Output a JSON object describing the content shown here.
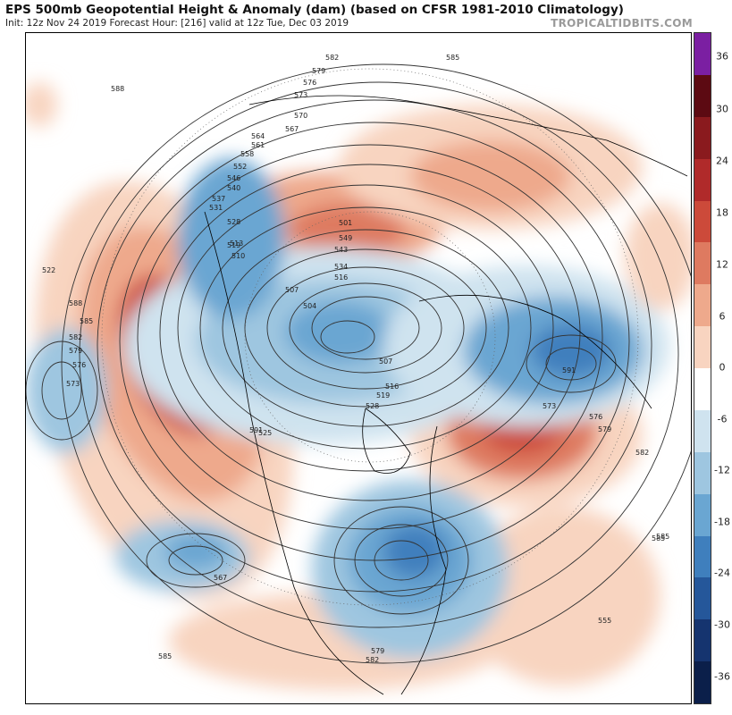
{
  "header": {
    "title": "EPS 500mb Geopotential Height & Anomaly (dam) (based on CFSR 1981-2010 Climatology)",
    "subtitle": "Init: 12z Nov 24 2019   Forecast Hour: [216]   valid at 12z Tue, Dec 03 2019",
    "brand": "TROPICALTIDBITS.COM"
  },
  "colorbar": {
    "ticks": [
      "36",
      "30",
      "24",
      "18",
      "12",
      "6",
      "0",
      "-6",
      "-12",
      "-18",
      "-24",
      "-30",
      "-36"
    ],
    "colors": [
      "#7b1fa2",
      "#5c0a12",
      "#8a1a1e",
      "#b02a2a",
      "#cc4a3a",
      "#de7a60",
      "#eea98c",
      "#f8d4c0",
      "#ffffff",
      "#cfe3ef",
      "#9ec6e0",
      "#6aa6d2",
      "#3f7fbd",
      "#25579a",
      "#15346f",
      "#0b1f4a"
    ],
    "unit": "dam"
  },
  "contour_labels": [
    "588",
    "579",
    "582",
    "585",
    "573",
    "576",
    "570",
    "567",
    "564",
    "561",
    "558",
    "555",
    "552",
    "546",
    "540",
    "537",
    "531",
    "528",
    "519",
    "516",
    "513",
    "510",
    "507",
    "504",
    "501",
    "549",
    "543",
    "534",
    "522",
    "591",
    "525",
    "591"
  ],
  "anomaly_centers": [
    {
      "name": "ridge-north-pacific",
      "sign": "positive"
    },
    {
      "name": "trough-hudson-bay",
      "sign": "negative"
    },
    {
      "name": "ridge-atlantic",
      "sign": "positive"
    },
    {
      "name": "trough-eastern-us",
      "sign": "negative"
    },
    {
      "name": "trough-siberia",
      "sign": "negative"
    },
    {
      "name": "ridge-arctic",
      "sign": "positive"
    },
    {
      "name": "trough-east-pacific",
      "sign": "negative"
    },
    {
      "name": "trough-subtropical-pacific",
      "sign": "negative"
    }
  ]
}
